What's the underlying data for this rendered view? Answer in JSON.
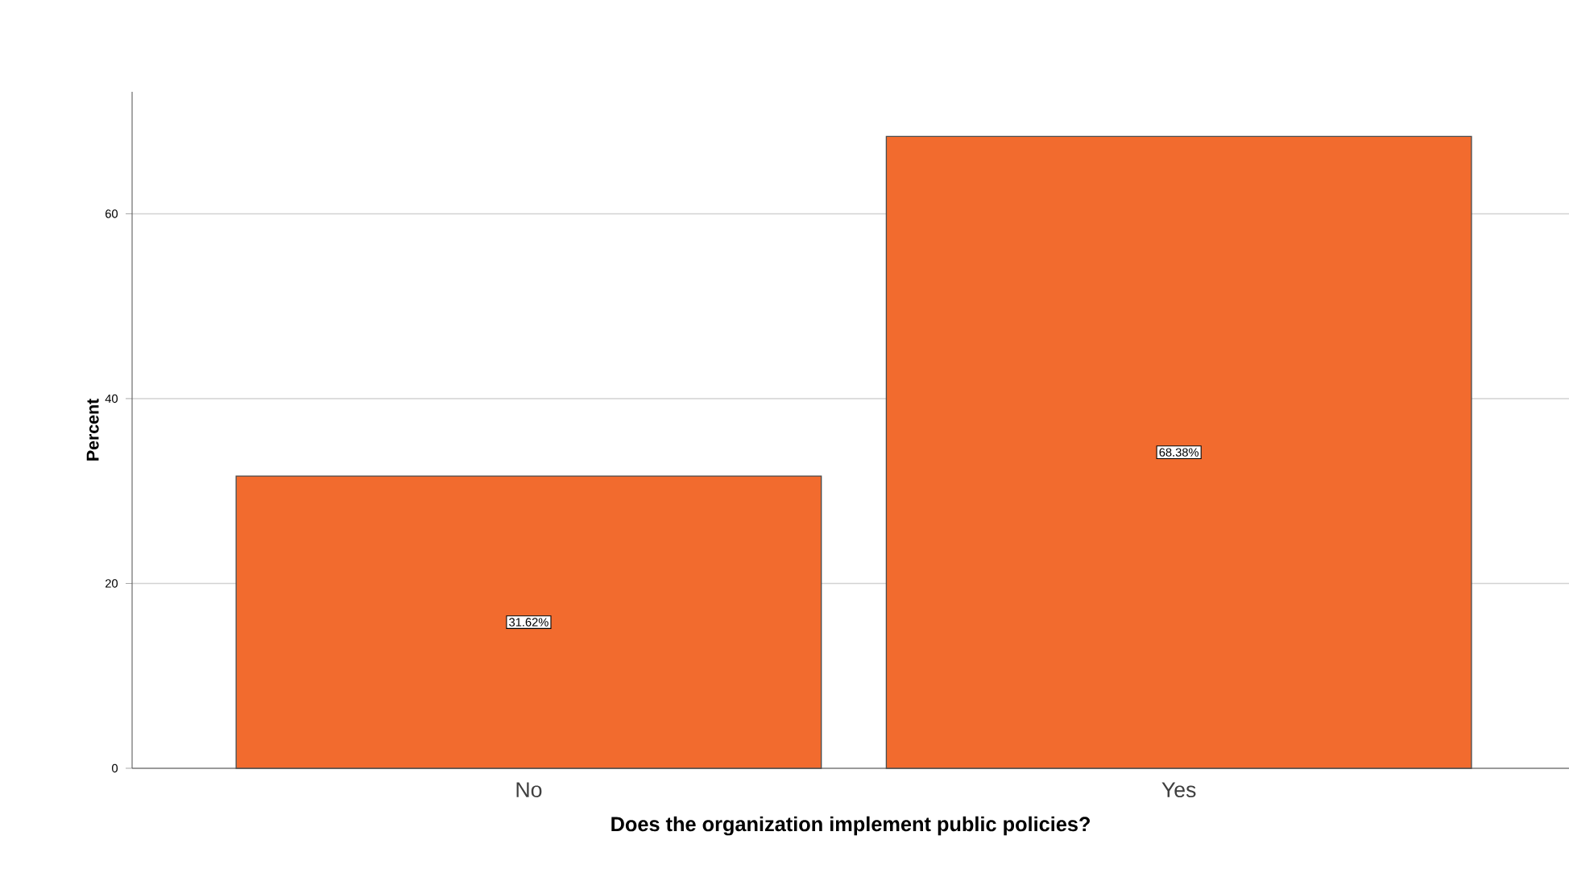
{
  "chart_data": {
    "type": "bar",
    "xlabel": "Does the organization implement public policies?",
    "ylabel": "Percent",
    "categories": [
      "No",
      "Yes"
    ],
    "values": [
      31.62,
      68.38
    ],
    "value_labels": [
      "31.62%",
      "68.38%"
    ],
    "color": "#f26b2e",
    "ylim": [
      0,
      73.2
    ],
    "yticks": [
      0,
      20,
      40,
      60
    ],
    "grid": "y"
  }
}
